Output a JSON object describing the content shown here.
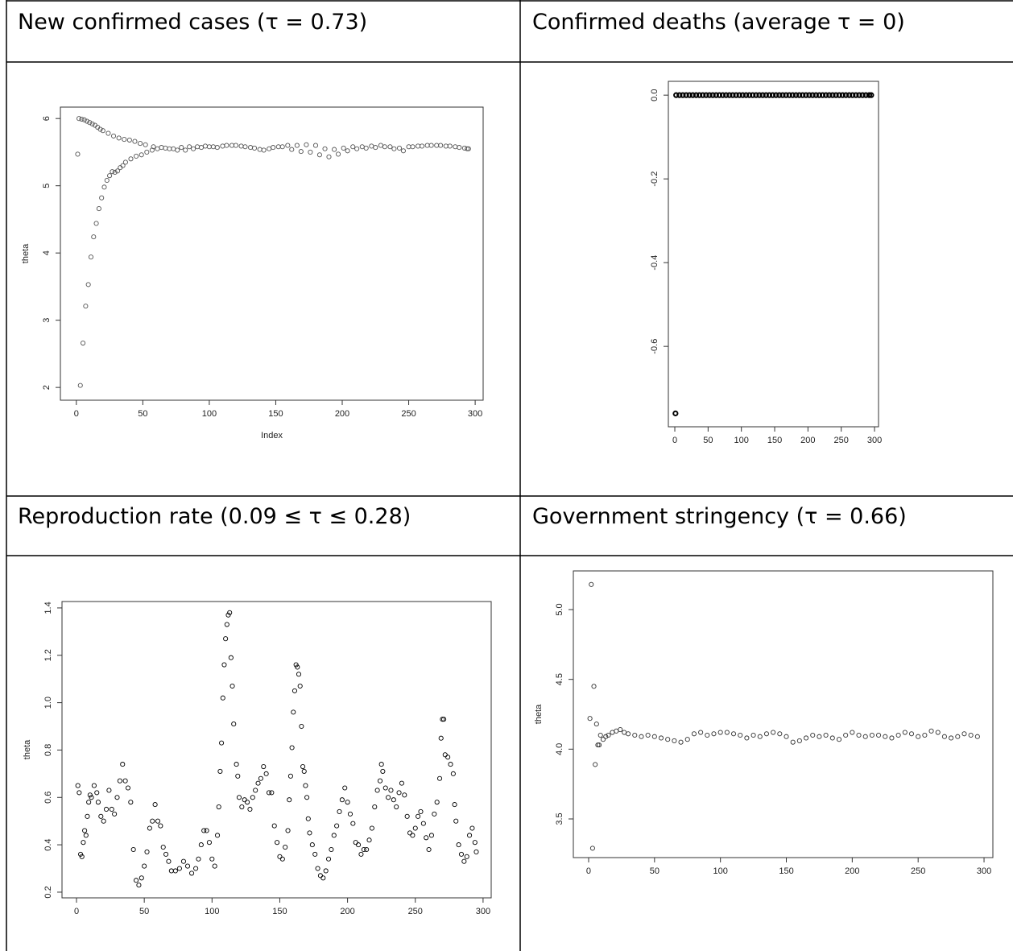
{
  "chart_data": [
    {
      "type": "scatter",
      "title": "New confirmed cases (τ = 0.73)",
      "xlabel": "Index",
      "ylabel": "theta",
      "color": "#555555",
      "xlim": [
        -12,
        306
      ],
      "ylim": [
        1.81,
        6.17
      ],
      "xticks": [
        0,
        50,
        100,
        150,
        200,
        250,
        300
      ],
      "yticks": [
        2,
        3,
        4,
        5,
        6
      ],
      "x": [
        3,
        5,
        7,
        9,
        11,
        13,
        15,
        17,
        19,
        21,
        23,
        25,
        27,
        29,
        31,
        33,
        35,
        37,
        41,
        45,
        49,
        53,
        57,
        61,
        67,
        73,
        79,
        85,
        91,
        97,
        1,
        2,
        4,
        6,
        8,
        10,
        12,
        14,
        16,
        18,
        20,
        24,
        28,
        32,
        36,
        40,
        44,
        48,
        52,
        58,
        64,
        70,
        76,
        82,
        88,
        94,
        100,
        103,
        110,
        117,
        124,
        131,
        138,
        145,
        152,
        159,
        166,
        173,
        180,
        187,
        194,
        201,
        208,
        215,
        222,
        229,
        236,
        243,
        250,
        257,
        264,
        271,
        278,
        285,
        292,
        295,
        106,
        113,
        120,
        127,
        134,
        141,
        148,
        155,
        162,
        169,
        176,
        183,
        190,
        197,
        204,
        211,
        218,
        225,
        232,
        239,
        246,
        253,
        260,
        267,
        274,
        281,
        288,
        294
      ],
      "values": [
        2.03,
        2.66,
        3.21,
        3.53,
        3.94,
        4.24,
        4.44,
        4.66,
        4.82,
        4.98,
        5.08,
        5.15,
        5.21,
        5.2,
        5.22,
        5.27,
        5.3,
        5.35,
        5.4,
        5.44,
        5.46,
        5.5,
        5.53,
        5.55,
        5.56,
        5.55,
        5.57,
        5.58,
        5.58,
        5.59,
        5.47,
        6.0,
        5.99,
        5.98,
        5.96,
        5.94,
        5.92,
        5.9,
        5.87,
        5.84,
        5.82,
        5.78,
        5.74,
        5.71,
        5.69,
        5.68,
        5.66,
        5.63,
        5.61,
        5.58,
        5.57,
        5.55,
        5.53,
        5.53,
        5.55,
        5.57,
        5.58,
        5.58,
        5.59,
        5.6,
        5.59,
        5.57,
        5.54,
        5.55,
        5.58,
        5.6,
        5.6,
        5.61,
        5.6,
        5.55,
        5.54,
        5.56,
        5.58,
        5.58,
        5.59,
        5.6,
        5.58,
        5.56,
        5.58,
        5.59,
        5.6,
        5.6,
        5.59,
        5.58,
        5.56,
        5.55,
        5.57,
        5.6,
        5.6,
        5.58,
        5.56,
        5.53,
        5.57,
        5.58,
        5.54,
        5.51,
        5.5,
        5.46,
        5.43,
        5.47,
        5.52,
        5.55,
        5.56,
        5.57,
        5.58,
        5.55,
        5.52,
        5.58,
        5.59,
        5.6,
        5.6,
        5.59,
        5.57,
        5.55
      ]
    },
    {
      "type": "scatter",
      "title": "Confirmed deaths (average τ = 0)",
      "color": "#000000",
      "xlim": [
        -9.7,
        306
      ],
      "ylim": [
        -0.792,
        0.033
      ],
      "xticks": [
        0,
        50,
        100,
        150,
        200,
        250,
        300
      ],
      "yticks": [
        {
          "value": 0,
          "label": "0.0"
        },
        {
          "value": -0.2,
          "label": "-0.2"
        },
        {
          "value": -0.4,
          "label": "-0.4"
        },
        {
          "value": -0.6,
          "label": "-0.6"
        }
      ],
      "x": [
        1,
        2,
        7,
        12,
        17,
        22,
        27,
        32,
        37,
        42,
        47,
        52,
        57,
        62,
        67,
        72,
        77,
        82,
        87,
        92,
        97,
        102,
        107,
        112,
        117,
        122,
        127,
        132,
        137,
        142,
        147,
        152,
        157,
        162,
        167,
        172,
        177,
        182,
        187,
        192,
        197,
        202,
        207,
        212,
        217,
        222,
        227,
        232,
        237,
        242,
        247,
        252,
        257,
        262,
        267,
        272,
        277,
        282,
        287,
        292,
        295
      ],
      "values": [
        -0.76,
        0,
        0,
        0,
        0,
        0,
        0,
        0,
        0,
        0,
        0,
        0,
        0,
        0,
        0,
        0,
        0,
        0,
        0,
        0,
        0,
        0,
        0,
        0,
        0,
        0,
        0,
        0,
        0,
        0,
        0,
        0,
        0,
        0,
        0,
        0,
        0,
        0,
        0,
        0,
        0,
        0,
        0,
        0,
        0,
        0,
        0,
        0,
        0,
        0,
        0,
        0,
        0,
        0,
        0,
        0,
        0,
        0,
        0,
        0,
        0
      ]
    },
    {
      "type": "scatter",
      "title": "Reproduction rate (0.09 ≤ τ ≤ 0.28)",
      "ylabel": "theta",
      "color": "#000000",
      "xlim": [
        -10.7,
        306
      ],
      "ylim": [
        0.176,
        1.427
      ],
      "xticks": [
        0,
        50,
        100,
        150,
        200,
        250,
        300
      ],
      "yticks": [
        0.2,
        0.4,
        0.6,
        0.8,
        {
          "value": 1,
          "label": "1.0"
        },
        1.2,
        1.4
      ],
      "x": [
        1,
        2,
        3,
        4,
        5,
        6,
        7,
        8,
        9,
        10,
        11,
        13,
        15,
        16,
        18,
        20,
        22,
        24,
        26,
        28,
        30,
        32,
        34,
        36,
        38,
        40,
        42,
        44,
        46,
        48,
        50,
        52,
        54,
        56,
        58,
        60,
        62,
        64,
        66,
        68,
        70,
        73,
        76,
        79,
        82,
        85,
        88,
        90,
        92,
        94,
        96,
        98,
        100,
        102,
        104,
        105,
        106,
        107,
        108,
        109,
        110,
        111,
        112,
        113,
        114,
        115,
        116,
        118,
        119,
        120,
        122,
        124,
        126,
        128,
        130,
        132,
        134,
        136,
        138,
        140,
        142,
        144,
        146,
        148,
        150,
        152,
        154,
        156,
        157,
        158,
        159,
        160,
        161,
        162,
        163,
        164,
        165,
        166,
        167,
        168,
        169,
        170,
        171,
        172,
        174,
        176,
        178,
        180,
        182,
        184,
        186,
        188,
        190,
        192,
        194,
        196,
        198,
        200,
        202,
        204,
        206,
        208,
        210,
        212,
        214,
        216,
        218,
        220,
        222,
        224,
        225,
        226,
        228,
        230,
        232,
        234,
        236,
        238,
        240,
        242,
        244,
        246,
        248,
        250,
        252,
        254,
        256,
        258,
        260,
        262,
        264,
        266,
        268,
        269,
        270,
        271,
        272,
        274,
        276,
        278,
        279,
        280,
        282,
        284,
        286,
        288,
        290,
        292,
        294,
        295
      ],
      "values": [
        0.65,
        0.62,
        0.36,
        0.35,
        0.41,
        0.46,
        0.44,
        0.52,
        0.58,
        0.61,
        0.6,
        0.65,
        0.62,
        0.58,
        0.52,
        0.5,
        0.55,
        0.63,
        0.55,
        0.53,
        0.6,
        0.67,
        0.74,
        0.67,
        0.64,
        0.58,
        0.38,
        0.25,
        0.23,
        0.26,
        0.31,
        0.37,
        0.47,
        0.5,
        0.57,
        0.5,
        0.48,
        0.39,
        0.36,
        0.33,
        0.29,
        0.29,
        0.3,
        0.33,
        0.31,
        0.28,
        0.3,
        0.34,
        0.4,
        0.46,
        0.46,
        0.41,
        0.34,
        0.31,
        0.44,
        0.56,
        0.71,
        0.83,
        1.02,
        1.16,
        1.27,
        1.33,
        1.37,
        1.38,
        1.19,
        1.07,
        0.91,
        0.74,
        0.69,
        0.6,
        0.56,
        0.59,
        0.58,
        0.55,
        0.6,
        0.63,
        0.66,
        0.68,
        0.73,
        0.7,
        0.62,
        0.62,
        0.48,
        0.41,
        0.35,
        0.34,
        0.39,
        0.46,
        0.59,
        0.69,
        0.81,
        0.96,
        1.05,
        1.16,
        1.15,
        1.12,
        1.07,
        0.9,
        0.73,
        0.71,
        0.65,
        0.6,
        0.51,
        0.45,
        0.4,
        0.36,
        0.3,
        0.27,
        0.26,
        0.29,
        0.34,
        0.38,
        0.44,
        0.48,
        0.54,
        0.59,
        0.64,
        0.58,
        0.53,
        0.49,
        0.41,
        0.4,
        0.36,
        0.38,
        0.38,
        0.42,
        0.47,
        0.56,
        0.63,
        0.67,
        0.74,
        0.71,
        0.64,
        0.6,
        0.63,
        0.59,
        0.56,
        0.62,
        0.66,
        0.61,
        0.52,
        0.45,
        0.44,
        0.47,
        0.52,
        0.54,
        0.49,
        0.43,
        0.38,
        0.44,
        0.53,
        0.58,
        0.68,
        0.85,
        0.93,
        0.93,
        0.78,
        0.77,
        0.74,
        0.7,
        0.57,
        0.5,
        0.4,
        0.36,
        0.33,
        0.35,
        0.44,
        0.47,
        0.41,
        0.37
      ]
    },
    {
      "type": "scatter",
      "title": "Government stringency (τ = 0.66)",
      "ylabel": "theta",
      "color": "#333333",
      "xlim": [
        -11.6,
        306.7
      ],
      "ylim": [
        3.223,
        5.277
      ],
      "xticks": [
        0,
        50,
        100,
        150,
        200,
        250,
        300
      ],
      "yticks": [
        3.5,
        {
          "value": 4,
          "label": "4.0"
        },
        4.5,
        {
          "value": 5,
          "label": "5.0"
        }
      ],
      "x": [
        1,
        2,
        3,
        4,
        5,
        6,
        7,
        8,
        9,
        11,
        13,
        15,
        18,
        21,
        24,
        27,
        30,
        35,
        40,
        45,
        50,
        55,
        60,
        65,
        70,
        75,
        80,
        85,
        90,
        95,
        100,
        105,
        110,
        115,
        120,
        125,
        130,
        135,
        140,
        145,
        150,
        155,
        160,
        165,
        170,
        175,
        180,
        185,
        190,
        195,
        200,
        205,
        210,
        215,
        220,
        225,
        230,
        235,
        240,
        245,
        250,
        255,
        260,
        265,
        270,
        275,
        280,
        285,
        290,
        295
      ],
      "values": [
        4.22,
        5.18,
        3.29,
        4.45,
        3.89,
        4.18,
        4.03,
        4.03,
        4.1,
        4.07,
        4.09,
        4.1,
        4.12,
        4.13,
        4.14,
        4.12,
        4.11,
        4.1,
        4.09,
        4.1,
        4.09,
        4.08,
        4.07,
        4.06,
        4.05,
        4.07,
        4.11,
        4.12,
        4.1,
        4.11,
        4.12,
        4.12,
        4.11,
        4.1,
        4.08,
        4.1,
        4.09,
        4.11,
        4.12,
        4.11,
        4.09,
        4.05,
        4.06,
        4.08,
        4.1,
        4.09,
        4.1,
        4.08,
        4.07,
        4.1,
        4.12,
        4.1,
        4.09,
        4.1,
        4.1,
        4.09,
        4.08,
        4.1,
        4.12,
        4.11,
        4.09,
        4.1,
        4.13,
        4.12,
        4.09,
        4.08,
        4.09,
        4.11,
        4.1,
        4.09
      ]
    }
  ]
}
